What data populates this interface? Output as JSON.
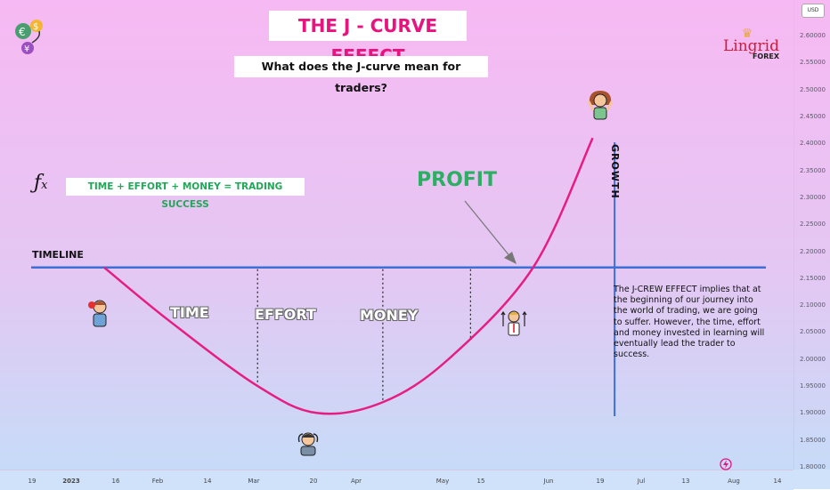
{
  "title": "THE J - CURVE EFFECT",
  "subtitle": "What does the J-curve mean for traders?",
  "formula_symbol": "fx",
  "formula": "TIME + EFFORT + MONEY = TRADING SUCCESS",
  "timeline_label": "TIMELINE",
  "profit_label": "PROFIT",
  "growth_label": "GROWTH",
  "phases": [
    "TIME",
    "EFFORT",
    "MONEY"
  ],
  "description": "The J-CREW EFFECT implies that at the beginning of our journey into the world of trading, we are going to suffer. However, the time, effort and money invested in learning will eventually lead the trader to success.",
  "logo": {
    "name": "Lingrid",
    "sub": "FOREX"
  },
  "currency": "USD",
  "price_ticks": [
    "2.60000",
    "2.55000",
    "2.50000",
    "2.45000",
    "2.40000",
    "2.35000",
    "2.30000",
    "2.25000",
    "2.20000",
    "2.15000",
    "2.10000",
    "2.05000",
    "2.00000",
    "1.95000",
    "1.90000",
    "1.85000",
    "1.80000"
  ],
  "time_ticks": [
    {
      "label": "19",
      "bold": false
    },
    {
      "label": "2023",
      "bold": true
    },
    {
      "label": "16",
      "bold": false
    },
    {
      "label": "Feb",
      "bold": false
    },
    {
      "label": "14",
      "bold": false
    },
    {
      "label": "Mar",
      "bold": false
    },
    {
      "label": "20",
      "bold": false
    },
    {
      "label": "Apr",
      "bold": false
    },
    {
      "label": "May",
      "bold": false
    },
    {
      "label": "15",
      "bold": false
    },
    {
      "label": "Jun",
      "bold": false
    },
    {
      "label": "19",
      "bold": false
    },
    {
      "label": "Jul",
      "bold": false
    },
    {
      "label": "13",
      "bold": false
    },
    {
      "label": "Aug",
      "bold": false
    },
    {
      "label": "14",
      "bold": false
    }
  ],
  "colors": {
    "curve": "#e61e82",
    "lines": "#3d6fd6",
    "title": "#e8137e",
    "profit": "#2bb063"
  },
  "icons": [
    "currency-exchange-icon",
    "frustrated-person-icon",
    "stressed-person-icon",
    "growth-businessman-icon",
    "happy-woman-icon",
    "bolt-icon"
  ],
  "chart_data": {
    "type": "line",
    "title": "THE J - CURVE EFFECT",
    "xlabel": "",
    "ylabel": "",
    "ylim": [
      1.8,
      2.6
    ],
    "series": [
      {
        "name": "",
        "x": [
          "2023-01-11",
          "2023-02-01",
          "2023-03-01",
          "2023-03-20",
          "2023-04-10",
          "2023-05-01",
          "2023-05-28",
          "2023-06-16"
        ],
        "values": [
          2.17,
          2.07,
          1.95,
          1.9,
          1.92,
          2.0,
          2.17,
          2.41
        ]
      }
    ],
    "reference_lines": [
      {
        "orientation": "horizontal",
        "value": 2.17
      },
      {
        "orientation": "vertical",
        "x": "2023-06-23"
      }
    ],
    "phase_dividers": [
      "2023-03-01",
      "2023-04-10",
      "2023-05-08"
    ]
  }
}
